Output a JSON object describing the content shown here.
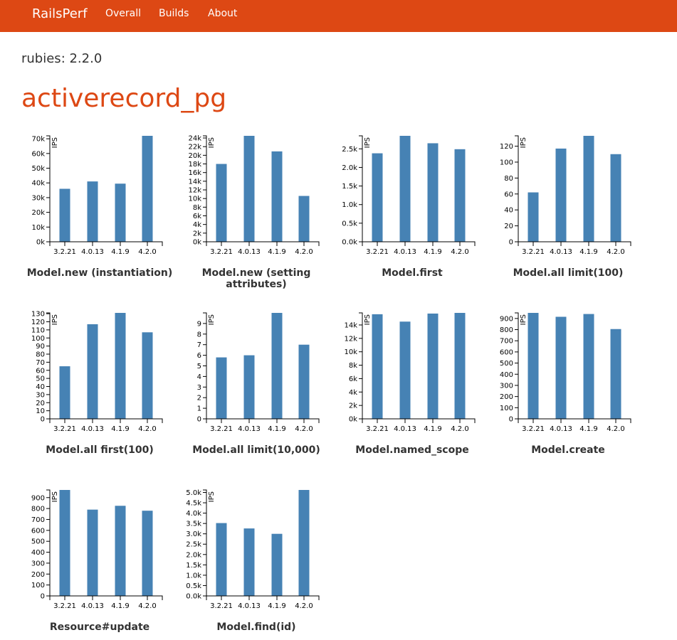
{
  "nav": {
    "brand": "RailsPerf",
    "links": [
      "Overall",
      "Builds",
      "About"
    ]
  },
  "header": {
    "rubies": "rubies: 2.2.0",
    "title": "activerecord_pg"
  },
  "colors": {
    "brand": "#dd4814",
    "bar": "#4682b4"
  },
  "chart_data": [
    {
      "type": "bar",
      "title": "Model.new (instantiation)",
      "ylabel": "IPS",
      "categories": [
        "3.2.21",
        "4.0.13",
        "4.1.9",
        "4.2.0"
      ],
      "values": [
        36000,
        41000,
        39500,
        72000
      ],
      "ylim": [
        0,
        72000
      ],
      "yticks": [
        0,
        10000,
        20000,
        30000,
        40000,
        50000,
        60000,
        70000
      ],
      "ytick_labels": [
        "0k",
        "10k",
        "20k",
        "30k",
        "40k",
        "50k",
        "60k",
        "70k"
      ]
    },
    {
      "type": "bar",
      "title": "Model.new (setting attributes)",
      "ylabel": "IPS",
      "categories": [
        "3.2.21",
        "4.0.13",
        "4.1.9",
        "4.2.0"
      ],
      "values": [
        18000,
        24500,
        20900,
        10600
      ],
      "ylim": [
        0,
        24500
      ],
      "yticks": [
        0,
        2000,
        4000,
        6000,
        8000,
        10000,
        12000,
        14000,
        16000,
        18000,
        20000,
        22000,
        24000
      ],
      "ytick_labels": [
        "0k",
        "2k",
        "4k",
        "6k",
        "8k",
        "10k",
        "12k",
        "14k",
        "16k",
        "18k",
        "20k",
        "22k",
        "24k"
      ]
    },
    {
      "type": "bar",
      "title": "Model.first",
      "ylabel": "IPS",
      "categories": [
        "3.2.21",
        "4.0.13",
        "4.1.9",
        "4.2.0"
      ],
      "values": [
        2380,
        2850,
        2650,
        2490
      ],
      "ylim": [
        0,
        2850
      ],
      "yticks": [
        0,
        500,
        1000,
        1500,
        2000,
        2500
      ],
      "ytick_labels": [
        "0.0k",
        "0.5k",
        "1.0k",
        "1.5k",
        "2.0k",
        "2.5k"
      ]
    },
    {
      "type": "bar",
      "title": "Model.all limit(100)",
      "ylabel": "IPS",
      "categories": [
        "3.2.21",
        "4.0.13",
        "4.1.9",
        "4.2.0"
      ],
      "values": [
        62,
        117,
        133,
        110
      ],
      "ylim": [
        0,
        133
      ],
      "yticks": [
        0,
        20,
        40,
        60,
        80,
        100,
        120
      ],
      "ytick_labels": [
        "0",
        "20",
        "40",
        "60",
        "80",
        "100",
        "120"
      ]
    },
    {
      "type": "bar",
      "title": "Model.all first(100)",
      "ylabel": "IPS",
      "categories": [
        "3.2.21",
        "4.0.13",
        "4.1.9",
        "4.2.0"
      ],
      "values": [
        65,
        117,
        131,
        107
      ],
      "ylim": [
        0,
        131
      ],
      "yticks": [
        0,
        10,
        20,
        30,
        40,
        50,
        60,
        70,
        80,
        90,
        100,
        110,
        120,
        130
      ],
      "ytick_labels": [
        "0",
        "10",
        "20",
        "30",
        "40",
        "50",
        "60",
        "70",
        "80",
        "90",
        "100",
        "110",
        "120",
        "130"
      ]
    },
    {
      "type": "bar",
      "title": "Model.all limit(10,000)",
      "ylabel": "IPS",
      "categories": [
        "3.2.21",
        "4.0.13",
        "4.1.9",
        "4.2.0"
      ],
      "values": [
        5.8,
        6.0,
        10.0,
        7.0
      ],
      "ylim": [
        0,
        10
      ],
      "yticks": [
        0,
        1,
        2,
        3,
        4,
        5,
        6,
        7,
        8,
        9
      ],
      "ytick_labels": [
        "0",
        "1",
        "2",
        "3",
        "4",
        "5",
        "6",
        "7",
        "8",
        "9"
      ]
    },
    {
      "type": "bar",
      "title": "Model.named_scope",
      "ylabel": "IPS",
      "categories": [
        "3.2.21",
        "4.0.13",
        "4.1.9",
        "4.2.0"
      ],
      "values": [
        15600,
        14500,
        15700,
        15800
      ],
      "ylim": [
        0,
        15800
      ],
      "yticks": [
        0,
        2000,
        4000,
        6000,
        8000,
        10000,
        12000,
        14000
      ],
      "ytick_labels": [
        "0k",
        "2k",
        "4k",
        "6k",
        "8k",
        "10k",
        "12k",
        "14k"
      ]
    },
    {
      "type": "bar",
      "title": "Model.create",
      "ylabel": "IPS",
      "categories": [
        "3.2.21",
        "4.0.13",
        "4.1.9",
        "4.2.0"
      ],
      "values": [
        950,
        915,
        940,
        805
      ],
      "ylim": [
        0,
        950
      ],
      "yticks": [
        0,
        100,
        200,
        300,
        400,
        500,
        600,
        700,
        800,
        900
      ],
      "ytick_labels": [
        "0",
        "100",
        "200",
        "300",
        "400",
        "500",
        "600",
        "700",
        "800",
        "900"
      ]
    },
    {
      "type": "bar",
      "title": "Resource#update",
      "ylabel": "IPS",
      "categories": [
        "3.2.21",
        "4.0.13",
        "4.1.9",
        "4.2.0"
      ],
      "values": [
        970,
        790,
        825,
        780
      ],
      "ylim": [
        0,
        970
      ],
      "yticks": [
        0,
        100,
        200,
        300,
        400,
        500,
        600,
        700,
        800,
        900
      ],
      "ytick_labels": [
        "0",
        "100",
        "200",
        "300",
        "400",
        "500",
        "600",
        "700",
        "800",
        "900"
      ]
    },
    {
      "type": "bar",
      "title": "Model.find(id)",
      "ylabel": "IPS",
      "categories": [
        "3.2.21",
        "4.0.13",
        "4.1.9",
        "4.2.0"
      ],
      "values": [
        3520,
        3260,
        3000,
        5120
      ],
      "ylim": [
        0,
        5120
      ],
      "yticks": [
        0,
        500,
        1000,
        1500,
        2000,
        2500,
        3000,
        3500,
        4000,
        4500,
        5000
      ],
      "ytick_labels": [
        "0.0k",
        "0.5k",
        "1.0k",
        "1.5k",
        "2.0k",
        "2.5k",
        "3.0k",
        "3.5k",
        "4.0k",
        "4.5k",
        "5.0k"
      ]
    }
  ]
}
